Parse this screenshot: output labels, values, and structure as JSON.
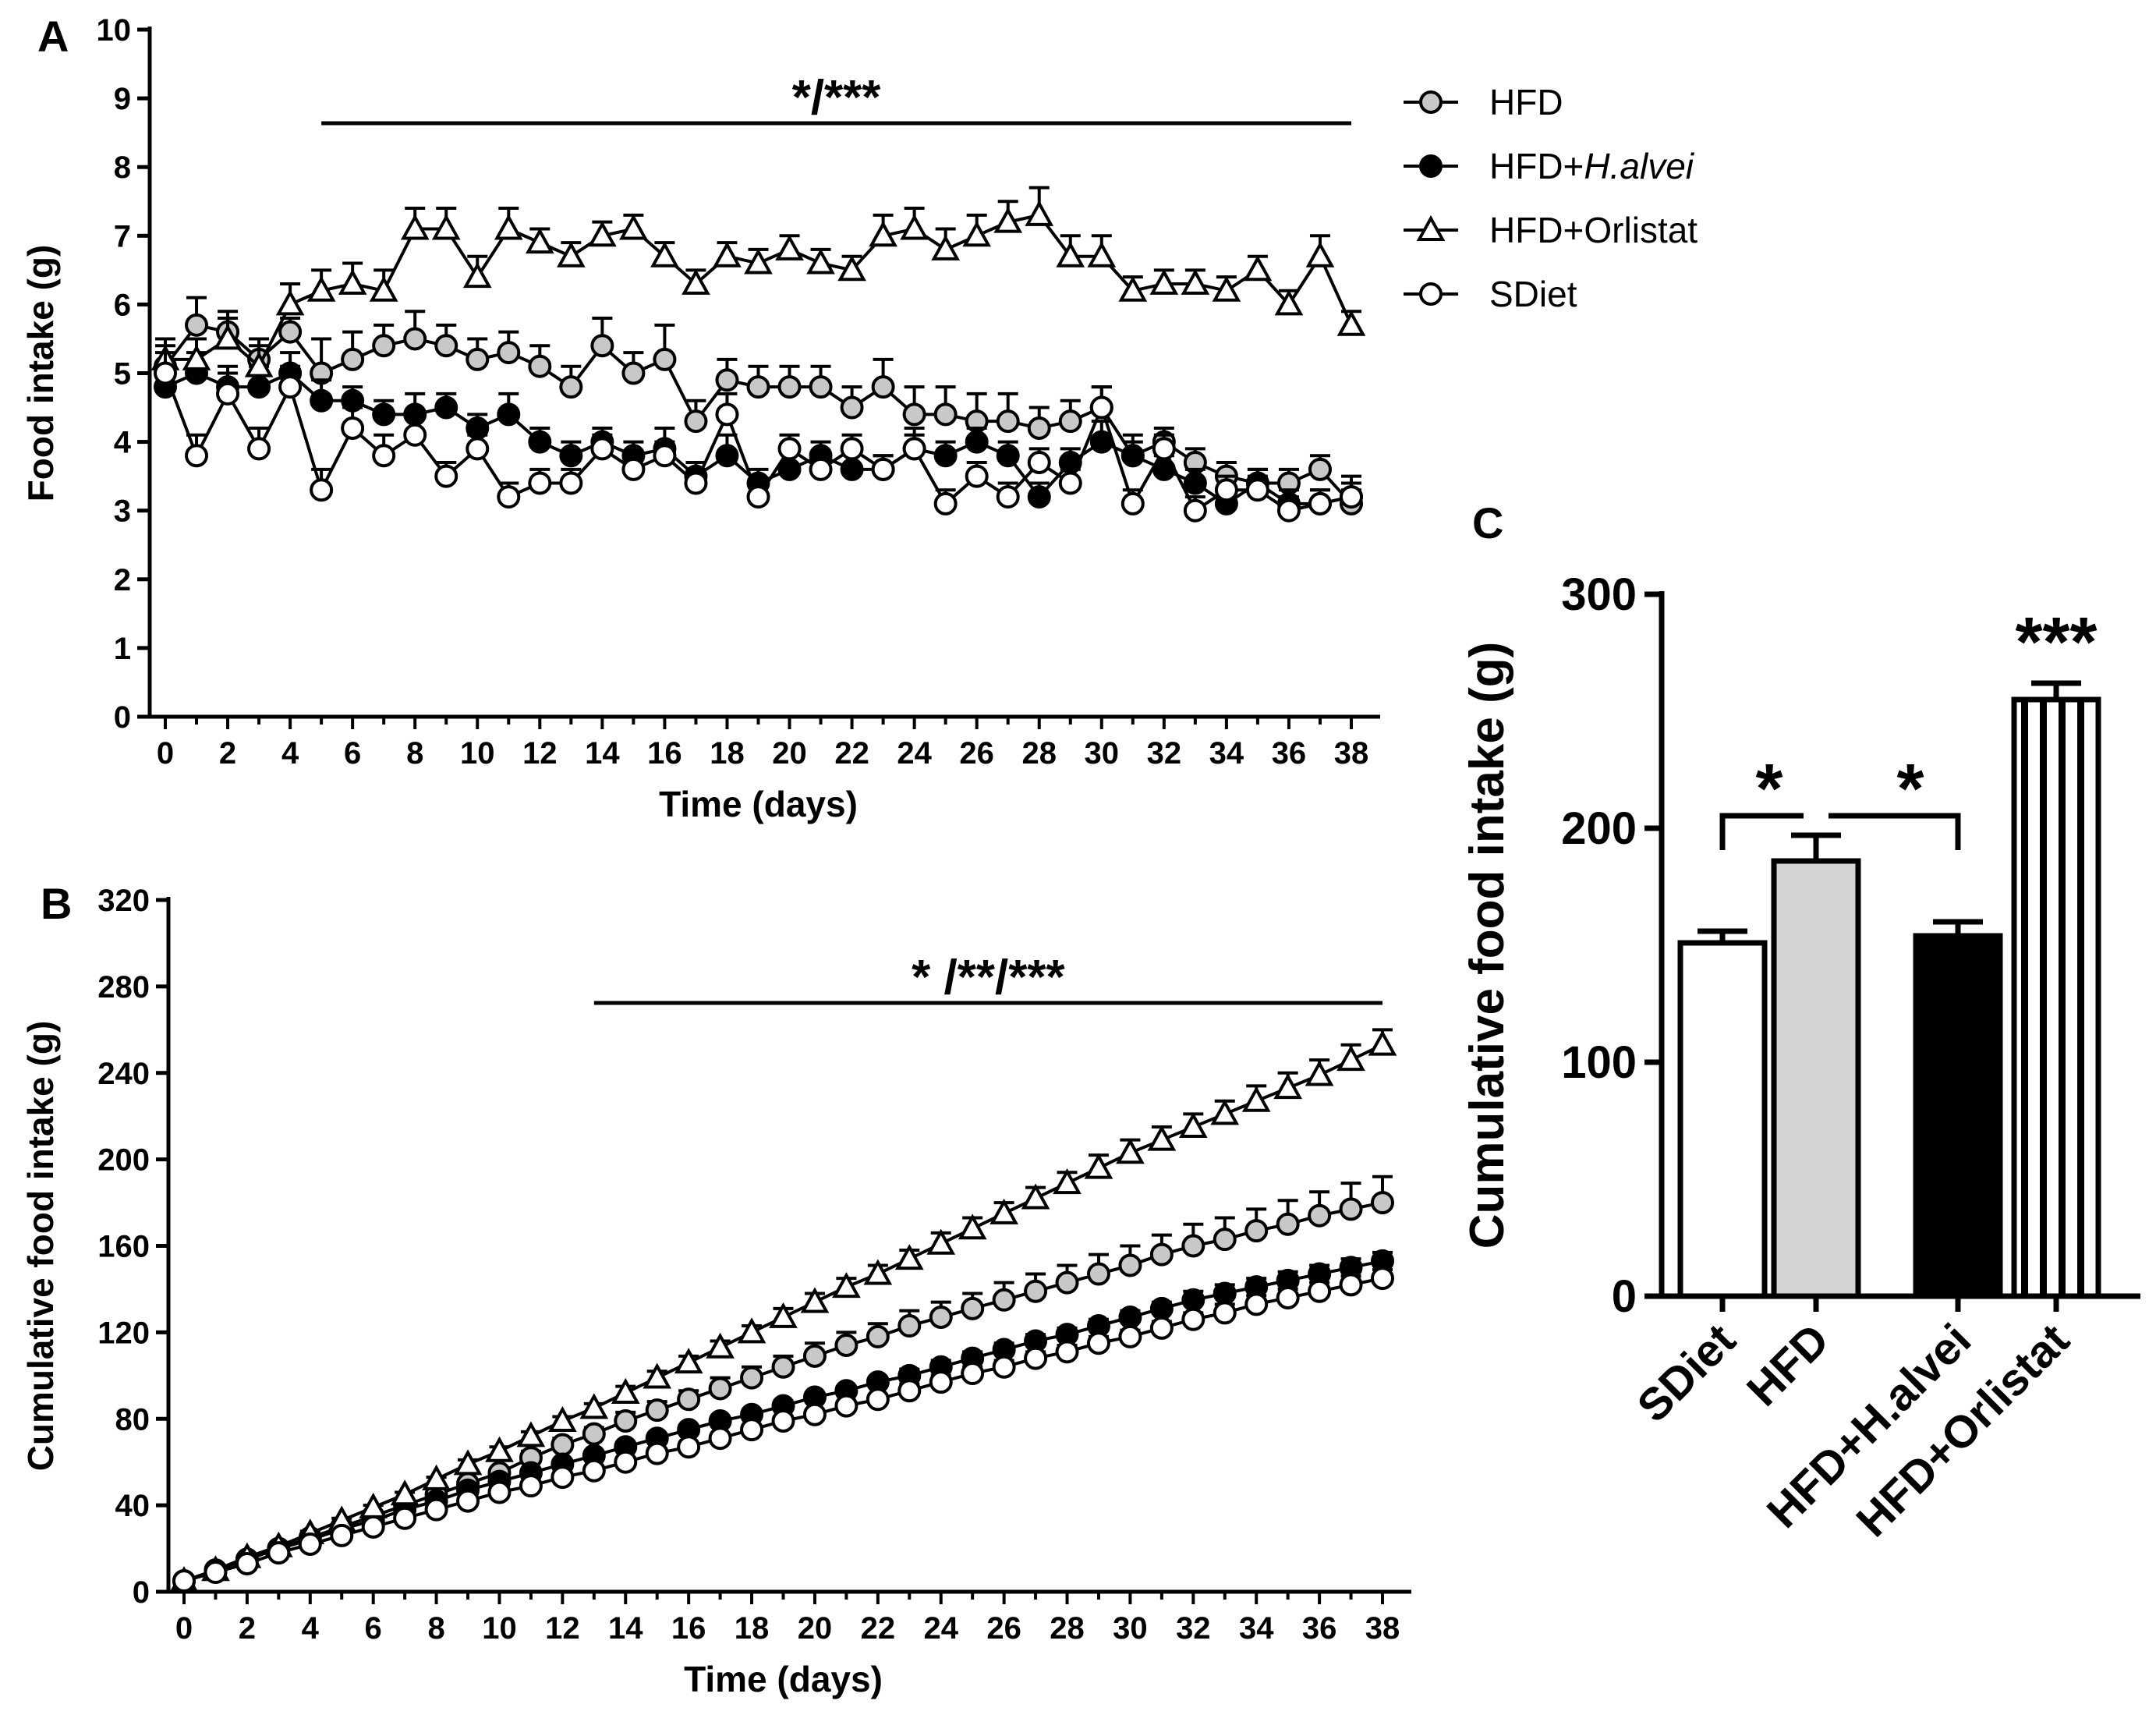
{
  "colors": {
    "ink": "#000000",
    "hfd_fill": "#c8c8c8",
    "hfd_bar": "#d4d4d4",
    "open_fill": "#ffffff"
  },
  "legend": [
    {
      "label_main": "HFD",
      "label_italic": "",
      "marker": "circle-gray-icon"
    },
    {
      "label_main": "HFD+",
      "label_italic": "H.alvei",
      "marker": "circle-black-icon"
    },
    {
      "label_main": "HFD+Orlistat",
      "label_italic": "",
      "marker": "triangle-open-icon"
    },
    {
      "label_main": "SDiet",
      "label_italic": "",
      "marker": "circle-open-icon"
    }
  ],
  "chart_data": [
    {
      "panel": "A",
      "type": "line",
      "xlabel": "Time (days)",
      "ylabel": "Food intake (g)",
      "xlim": [
        0,
        38
      ],
      "ylim": [
        0,
        10
      ],
      "xticks": [
        "0",
        "2",
        "4",
        "6",
        "8",
        "10",
        "12",
        "14",
        "16",
        "18",
        "20",
        "22",
        "24",
        "26",
        "28",
        "30",
        "32",
        "34",
        "36",
        "38"
      ],
      "yticks": [
        "0",
        "1",
        "2",
        "3",
        "4",
        "5",
        "6",
        "7",
        "8",
        "9",
        "10"
      ],
      "significance": {
        "label": "*/***",
        "x_range": [
          5,
          38
        ]
      },
      "series": [
        {
          "name": "HFD",
          "style": "gray-circle",
          "values": [
            5.1,
            5.7,
            5.6,
            5.2,
            5.6,
            5.0,
            5.2,
            5.4,
            5.5,
            5.4,
            5.2,
            5.3,
            5.1,
            4.8,
            5.4,
            5.0,
            5.2,
            4.3,
            4.9,
            4.8,
            4.8,
            4.8,
            4.5,
            4.8,
            4.4,
            4.4,
            4.3,
            4.3,
            4.2,
            4.3,
            4.5,
            3.8,
            4.0,
            3.7,
            3.5,
            3.4,
            3.4,
            3.6,
            3.1
          ],
          "errors": [
            0.3,
            0.4,
            0.3,
            0.3,
            0.2,
            0.5,
            0.4,
            0.3,
            0.4,
            0.3,
            0.3,
            0.3,
            0.3,
            0.3,
            0.4,
            0.3,
            0.5,
            0.3,
            0.3,
            0.3,
            0.3,
            0.3,
            0.3,
            0.4,
            0.4,
            0.4,
            0.4,
            0.4,
            0.3,
            0.3,
            0.3,
            0.3,
            0.2,
            0.2,
            0.2,
            0.2,
            0.2,
            0.2,
            0.2
          ]
        },
        {
          "name": "HFD+H.alvei",
          "style": "black-circle",
          "values": [
            4.8,
            5.0,
            4.8,
            4.8,
            5.0,
            4.6,
            4.6,
            4.4,
            4.4,
            4.5,
            4.2,
            4.4,
            4.0,
            3.8,
            4.0,
            3.8,
            3.9,
            3.5,
            3.8,
            3.4,
            3.6,
            3.8,
            3.6,
            3.6,
            3.9,
            3.8,
            4.0,
            3.8,
            3.2,
            3.7,
            4.0,
            3.8,
            3.6,
            3.4,
            3.1,
            3.4,
            3.1,
            3.1,
            3.2
          ],
          "errors": [
            0.3,
            0.3,
            0.3,
            0.3,
            0.3,
            0.3,
            0.2,
            0.2,
            0.3,
            0.2,
            0.2,
            0.3,
            0.2,
            0.2,
            0.2,
            0.2,
            0.3,
            0.2,
            0.3,
            0.2,
            0.3,
            0.2,
            0.3,
            0.2,
            0.3,
            0.2,
            0.2,
            0.2,
            0.2,
            0.2,
            0.3,
            0.2,
            0.2,
            0.2,
            0.2,
            0.2,
            0.2,
            0.2,
            0.3
          ]
        },
        {
          "name": "HFD+Orlistat",
          "style": "open-triangle",
          "values": [
            5.2,
            5.2,
            5.5,
            5.1,
            6.0,
            6.2,
            6.3,
            6.2,
            7.1,
            7.1,
            6.4,
            7.1,
            6.9,
            6.7,
            7.0,
            7.1,
            6.7,
            6.3,
            6.7,
            6.6,
            6.8,
            6.6,
            6.5,
            7.0,
            7.1,
            6.8,
            7.0,
            7.2,
            7.3,
            6.7,
            6.7,
            6.2,
            6.3,
            6.3,
            6.2,
            6.5,
            6.0,
            6.7,
            5.7
          ],
          "errors": [
            0.3,
            0.3,
            0.3,
            0.3,
            0.3,
            0.3,
            0.3,
            0.3,
            0.3,
            0.3,
            0.3,
            0.3,
            0.2,
            0.2,
            0.2,
            0.2,
            0.2,
            0.2,
            0.2,
            0.2,
            0.2,
            0.2,
            0.2,
            0.3,
            0.3,
            0.3,
            0.3,
            0.3,
            0.4,
            0.3,
            0.3,
            0.2,
            0.2,
            0.2,
            0.2,
            0.2,
            0.2,
            0.3,
            0.2
          ]
        },
        {
          "name": "SDiet",
          "style": "open-circle",
          "values": [
            5.0,
            3.8,
            4.7,
            3.9,
            4.8,
            3.3,
            4.2,
            3.8,
            4.1,
            3.5,
            3.9,
            3.2,
            3.4,
            3.4,
            3.9,
            3.6,
            3.8,
            3.4,
            4.4,
            3.2,
            3.9,
            3.6,
            3.9,
            3.6,
            3.9,
            3.1,
            3.5,
            3.2,
            3.7,
            3.4,
            4.5,
            3.1,
            3.9,
            3.0,
            3.3,
            3.3,
            3.0,
            3.1,
            3.2
          ],
          "errors": [
            0.3,
            0.3,
            0.3,
            0.3,
            0.3,
            0.3,
            0.3,
            0.3,
            0.3,
            0.2,
            0.2,
            0.2,
            0.2,
            0.2,
            0.2,
            0.2,
            0.2,
            0.2,
            0.3,
            0.2,
            0.2,
            0.2,
            0.2,
            0.2,
            0.2,
            0.2,
            0.2,
            0.2,
            0.2,
            0.2,
            0.3,
            0.2,
            0.2,
            0.2,
            0.2,
            0.2,
            0.2,
            0.2,
            0.2
          ]
        }
      ]
    },
    {
      "panel": "B",
      "type": "line",
      "xlabel": "Time (days)",
      "ylabel": "Cumulative food intake (g)",
      "xlim": [
        0,
        38
      ],
      "ylim": [
        0,
        320
      ],
      "xticks": [
        "0",
        "2",
        "4",
        "6",
        "8",
        "10",
        "12",
        "14",
        "16",
        "18",
        "20",
        "22",
        "24",
        "26",
        "28",
        "30",
        "32",
        "34",
        "36",
        "38"
      ],
      "yticks": [
        "0",
        "40",
        "80",
        "120",
        "160",
        "200",
        "240",
        "280",
        "320"
      ],
      "significance": {
        "label": "* /**/***",
        "x_range": [
          13,
          38
        ]
      },
      "series": [
        {
          "name": "HFD",
          "style": "gray-circle",
          "values": [
            5,
            10,
            15,
            20,
            25,
            30,
            35,
            40,
            45,
            50,
            55,
            62,
            68,
            73,
            79,
            84,
            89,
            94,
            99,
            104,
            109,
            114,
            118,
            123,
            127,
            131,
            135,
            139,
            143,
            147,
            151,
            156,
            160,
            163,
            167,
            170,
            174,
            177,
            180
          ],
          "errors": [
            0,
            0,
            0,
            0,
            1,
            1,
            1,
            1,
            2,
            2,
            2,
            3,
            3,
            3,
            4,
            4,
            4,
            5,
            5,
            5,
            6,
            6,
            6,
            7,
            7,
            7,
            8,
            8,
            8,
            9,
            9,
            9,
            10,
            10,
            10,
            11,
            11,
            12,
            12
          ]
        },
        {
          "name": "HFD+H.alvei",
          "style": "black-circle",
          "values": [
            5,
            10,
            15,
            20,
            24,
            29,
            33,
            38,
            42,
            47,
            51,
            55,
            59,
            63,
            67,
            71,
            75,
            79,
            82,
            86,
            90,
            93,
            97,
            100,
            104,
            108,
            112,
            116,
            119,
            123,
            127,
            131,
            135,
            138,
            141,
            144,
            147,
            150,
            153
          ],
          "errors": [
            0,
            0,
            0,
            0,
            1,
            1,
            1,
            1,
            1,
            1,
            1,
            1,
            1,
            2,
            2,
            2,
            2,
            2,
            2,
            2,
            2,
            2,
            2,
            3,
            3,
            3,
            3,
            3,
            3,
            3,
            3,
            3,
            4,
            4,
            4,
            4,
            4,
            4,
            4
          ]
        },
        {
          "name": "HFD+Orlistat",
          "style": "open-triangle",
          "values": [
            5,
            10,
            16,
            21,
            27,
            33,
            39,
            45,
            52,
            59,
            65,
            72,
            79,
            85,
            92,
            99,
            106,
            113,
            120,
            127,
            134,
            141,
            147,
            154,
            161,
            168,
            175,
            182,
            189,
            196,
            203,
            209,
            215,
            221,
            227,
            233,
            239,
            246,
            253
          ],
          "errors": [
            0,
            0,
            0,
            0,
            1,
            1,
            1,
            1,
            1,
            2,
            2,
            2,
            2,
            2,
            3,
            3,
            3,
            3,
            3,
            4,
            4,
            4,
            4,
            4,
            5,
            5,
            5,
            5,
            5,
            6,
            6,
            6,
            6,
            6,
            7,
            7,
            7,
            7,
            7
          ]
        },
        {
          "name": "SDiet",
          "style": "open-circle",
          "values": [
            5,
            9,
            13,
            18,
            22,
            26,
            30,
            34,
            38,
            42,
            46,
            49,
            53,
            56,
            60,
            64,
            67,
            71,
            75,
            79,
            82,
            86,
            89,
            93,
            97,
            101,
            104,
            108,
            111,
            115,
            118,
            122,
            126,
            129,
            133,
            136,
            139,
            142,
            145
          ],
          "errors": [
            0,
            0,
            0,
            0,
            1,
            1,
            1,
            1,
            1,
            1,
            1,
            1,
            1,
            1,
            2,
            2,
            2,
            2,
            2,
            2,
            2,
            2,
            2,
            3,
            3,
            3,
            3,
            3,
            3,
            3,
            3,
            3,
            3,
            4,
            4,
            4,
            4,
            4,
            4
          ]
        }
      ]
    },
    {
      "panel": "C",
      "type": "bar",
      "ylabel": "Cumulative food intake (g)",
      "ylim": [
        0,
        300
      ],
      "yticks": [
        "0",
        "100",
        "200",
        "300"
      ],
      "categories": [
        "SDiet",
        "HFD",
        "HFD+H.alvei",
        "HFD+Orlistat"
      ],
      "values": [
        151,
        186,
        154,
        255
      ],
      "errors": [
        5,
        11,
        6,
        7
      ],
      "fills": [
        "white",
        "gray",
        "black",
        "striped"
      ],
      "significance": [
        {
          "label": "*",
          "between": [
            "SDiet",
            "HFD"
          ]
        },
        {
          "label": "*",
          "between": [
            "HFD",
            "HFD+H.alvei"
          ]
        },
        {
          "label": "***",
          "on": "HFD+Orlistat"
        }
      ]
    }
  ]
}
